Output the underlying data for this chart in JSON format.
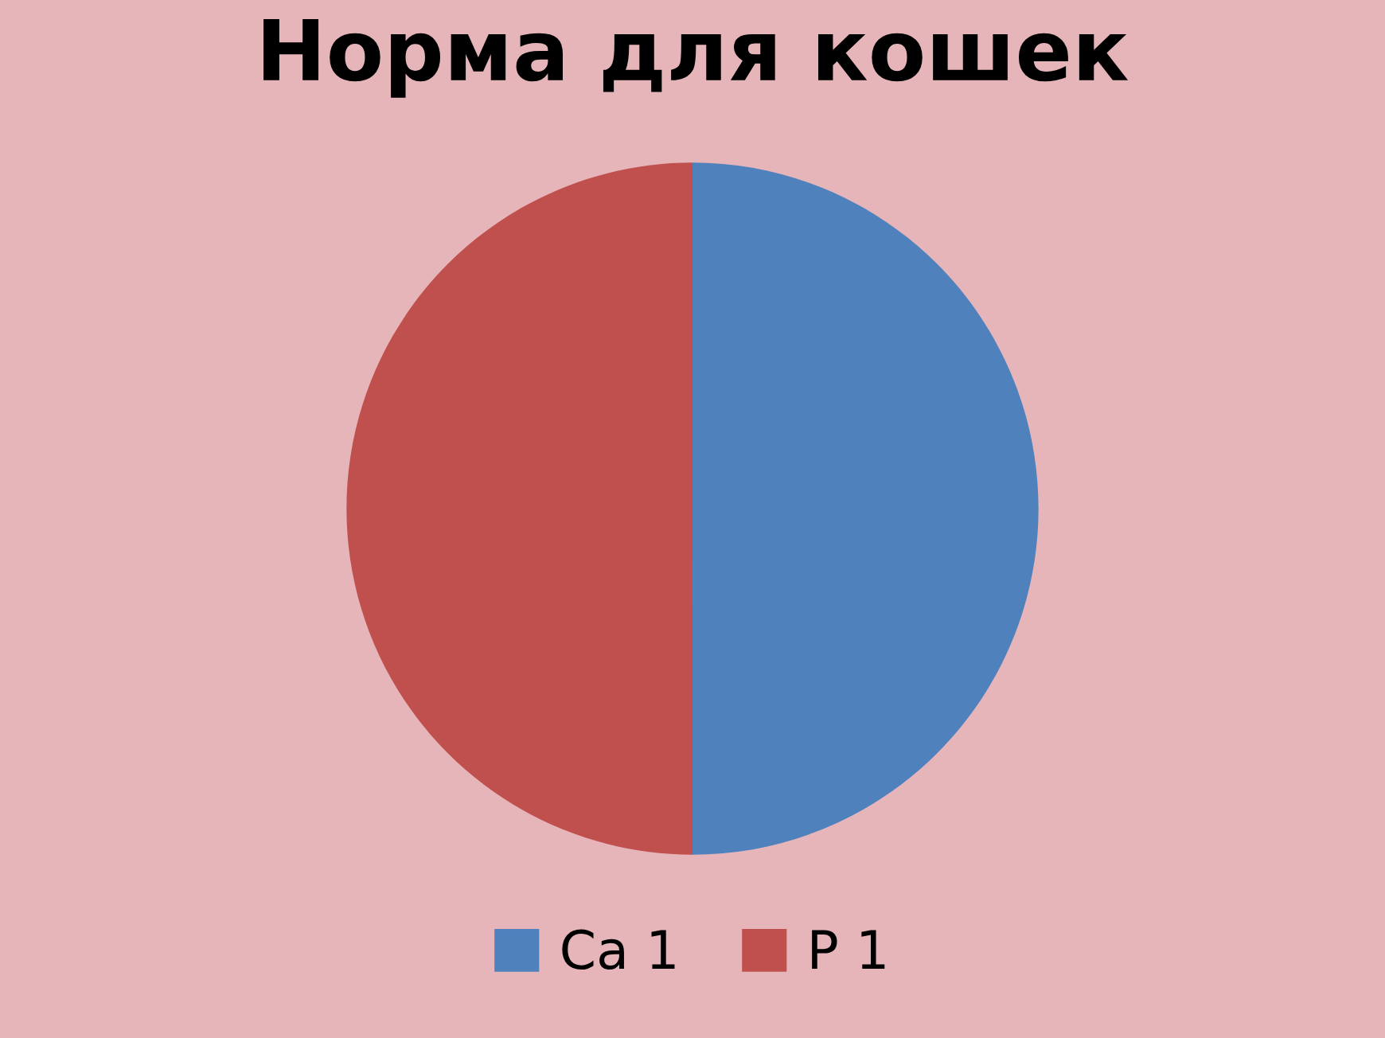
{
  "chart_data": {
    "type": "pie",
    "title": "Норма для кошек",
    "categories": [
      "Ca 1",
      "P 1"
    ],
    "values": [
      50,
      50
    ],
    "colors": [
      "#4f81bd",
      "#c0504d"
    ],
    "legend": "bottom"
  }
}
